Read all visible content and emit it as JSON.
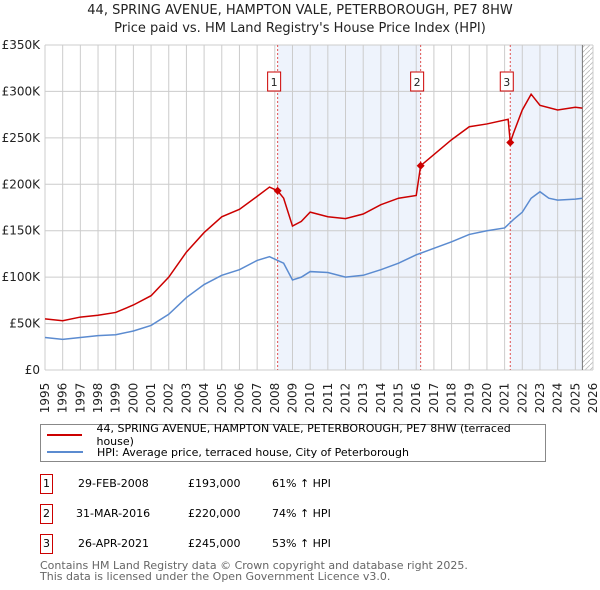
{
  "chart_data": {
    "type": "line",
    "title": "44, SPRING AVENUE, HAMPTON VALE, PETERBOROUGH, PE7 8HW",
    "subtitle": "Price paid vs. HM Land Registry's House Price Index (HPI)",
    "xlim": [
      1995,
      2026
    ],
    "ylim": [
      0,
      350000
    ],
    "x_ticks": [
      "1995",
      "1996",
      "1997",
      "1998",
      "1999",
      "2000",
      "2001",
      "2002",
      "2003",
      "2004",
      "2005",
      "2006",
      "2007",
      "2008",
      "2009",
      "2010",
      "2011",
      "2012",
      "2013",
      "2014",
      "2015",
      "2016",
      "2017",
      "2018",
      "2019",
      "2020",
      "2021",
      "2022",
      "2023",
      "2024",
      "2025",
      "2026"
    ],
    "y_ticks": [
      {
        "v": 0,
        "label": "£0"
      },
      {
        "v": 50000,
        "label": "£50K"
      },
      {
        "v": 100000,
        "label": "£100K"
      },
      {
        "v": 150000,
        "label": "£150K"
      },
      {
        "v": 200000,
        "label": "£200K"
      },
      {
        "v": 250000,
        "label": "£250K"
      },
      {
        "v": 300000,
        "label": "£300K"
      },
      {
        "v": 350000,
        "label": "£350K"
      }
    ],
    "series": [
      {
        "name": "44, SPRING AVENUE, HAMPTON VALE, PETERBOROUGH, PE7 8HW (terraced house)",
        "color": "#cc0000",
        "x": [
          1995,
          1996,
          1997,
          1998,
          1999,
          2000,
          2001,
          2002,
          2003,
          2004,
          2005,
          2006,
          2007,
          2007.7,
          2008.16,
          2008.5,
          2009,
          2009.5,
          2010,
          2011,
          2012,
          2013,
          2014,
          2015,
          2016,
          2016.25,
          2017,
          2018,
          2019,
          2020,
          2021.2,
          2021.32,
          2021.5,
          2022,
          2022.5,
          2023,
          2024,
          2025,
          2025.4
        ],
        "y": [
          55000,
          53000,
          57000,
          59000,
          62000,
          70000,
          80000,
          100000,
          127000,
          148000,
          165000,
          173000,
          187000,
          197000,
          193000,
          185000,
          155000,
          160000,
          170000,
          165000,
          163000,
          168000,
          178000,
          185000,
          188000,
          220000,
          232000,
          248000,
          262000,
          265000,
          270000,
          245000,
          255000,
          280000,
          297000,
          285000,
          280000,
          283000,
          282000
        ]
      },
      {
        "name": "HPI: Average price, terraced house, City of Peterborough",
        "color": "#5b8bd0",
        "x": [
          1995,
          1996,
          1997,
          1998,
          1999,
          2000,
          2001,
          2002,
          2003,
          2004,
          2005,
          2006,
          2007,
          2007.7,
          2008.5,
          2009,
          2009.5,
          2010,
          2011,
          2012,
          2013,
          2014,
          2015,
          2016,
          2017,
          2018,
          2019,
          2020,
          2021,
          2021.5,
          2022,
          2022.5,
          2023,
          2023.5,
          2024,
          2025,
          2025.4
        ],
        "y": [
          35000,
          33000,
          35000,
          37000,
          38000,
          42000,
          48000,
          60000,
          78000,
          92000,
          102000,
          108000,
          118000,
          122000,
          115000,
          97000,
          100000,
          106000,
          105000,
          100000,
          102000,
          108000,
          115000,
          124000,
          131000,
          138000,
          146000,
          150000,
          153000,
          162000,
          170000,
          185000,
          192000,
          185000,
          183000,
          184000,
          185000
        ]
      }
    ],
    "sales": [
      {
        "label": "1",
        "x": 2008.16,
        "date": "29-FEB-2008",
        "price": "£193,000",
        "value": 193000,
        "hpi": "61% ↑ HPI"
      },
      {
        "label": "2",
        "x": 2016.25,
        "date": "31-MAR-2016",
        "price": "£220,000",
        "value": 220000,
        "hpi": "74% ↑ HPI"
      },
      {
        "label": "3",
        "x": 2021.32,
        "date": "26-APR-2021",
        "price": "£245,000",
        "value": 245000,
        "hpi": "53% ↑ HPI"
      }
    ],
    "shaded": [
      [
        2008.16,
        2016.25
      ],
      [
        2021.32,
        2025.4
      ]
    ],
    "hatch_from": 2025.4
  },
  "footer": [
    "Contains HM Land Registry data © Crown copyright and database right 2025.",
    "This data is licensed under the Open Government Licence v3.0."
  ]
}
